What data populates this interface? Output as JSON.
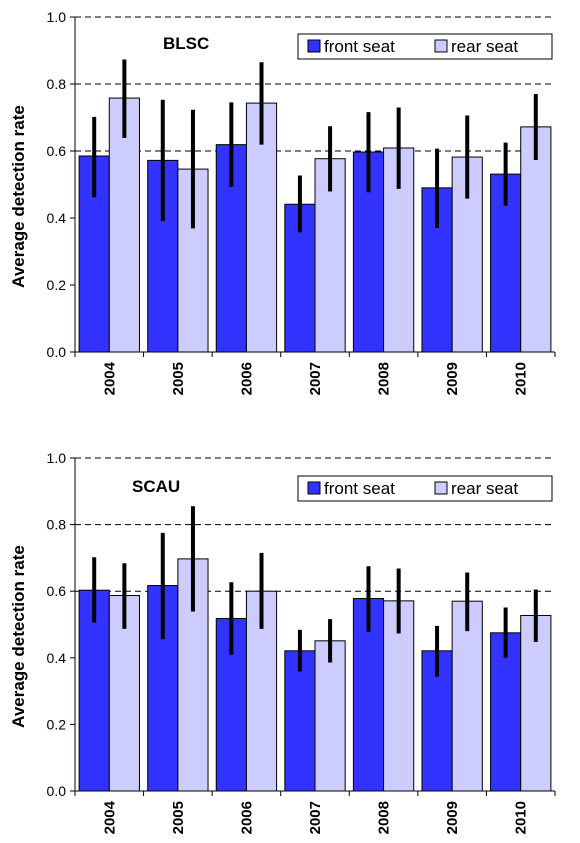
{
  "chart_data": [
    {
      "type": "bar",
      "title": "BLSC",
      "ylabel": "Average detection rate",
      "xlabel": "",
      "ylim": [
        0,
        1.0
      ],
      "yticks": [
        "0.0",
        "0.2",
        "0.4",
        "0.6",
        "0.8",
        "1.0"
      ],
      "grid": "dashed horizontal at 0.6, 0.8, 1.0",
      "legend_position": "top-right",
      "categories": [
        "2004",
        "2005",
        "2006",
        "2007",
        "2008",
        "2009",
        "2010"
      ],
      "series": [
        {
          "name": "front seat",
          "color": "#3333ff",
          "values": [
            0.585,
            0.572,
            0.619,
            0.441,
            0.597,
            0.49,
            0.531
          ],
          "error_low": [
            0.462,
            0.391,
            0.493,
            0.357,
            0.477,
            0.371,
            0.437
          ],
          "error_high": [
            0.702,
            0.753,
            0.745,
            0.527,
            0.716,
            0.607,
            0.625
          ]
        },
        {
          "name": "rear seat",
          "color": "#ccccff",
          "values": [
            0.758,
            0.546,
            0.743,
            0.577,
            0.609,
            0.582,
            0.672
          ],
          "error_low": [
            0.639,
            0.369,
            0.619,
            0.479,
            0.487,
            0.458,
            0.573
          ],
          "error_high": [
            0.873,
            0.723,
            0.865,
            0.674,
            0.73,
            0.706,
            0.77
          ]
        }
      ]
    },
    {
      "type": "bar",
      "title": "SCAU",
      "ylabel": "Average detection rate",
      "xlabel": "",
      "ylim": [
        0,
        1.0
      ],
      "yticks": [
        "0.0",
        "0.2",
        "0.4",
        "0.6",
        "0.8",
        "1.0"
      ],
      "grid": "dashed horizontal at 0.6, 0.8, 1.0",
      "legend_position": "top-right",
      "categories": [
        "2004",
        "2005",
        "2006",
        "2007",
        "2008",
        "2009",
        "2010"
      ],
      "series": [
        {
          "name": "front seat",
          "color": "#3333ff",
          "values": [
            0.603,
            0.617,
            0.518,
            0.421,
            0.578,
            0.421,
            0.475
          ],
          "error_low": [
            0.506,
            0.456,
            0.409,
            0.359,
            0.478,
            0.343,
            0.4
          ],
          "error_high": [
            0.702,
            0.775,
            0.627,
            0.484,
            0.675,
            0.496,
            0.551
          ]
        },
        {
          "name": "rear seat",
          "color": "#ccccff",
          "values": [
            0.587,
            0.697,
            0.6,
            0.451,
            0.571,
            0.57,
            0.527
          ],
          "error_low": [
            0.487,
            0.539,
            0.487,
            0.386,
            0.473,
            0.48,
            0.448
          ],
          "error_high": [
            0.684,
            0.855,
            0.715,
            0.516,
            0.668,
            0.656,
            0.605
          ]
        }
      ]
    }
  ]
}
